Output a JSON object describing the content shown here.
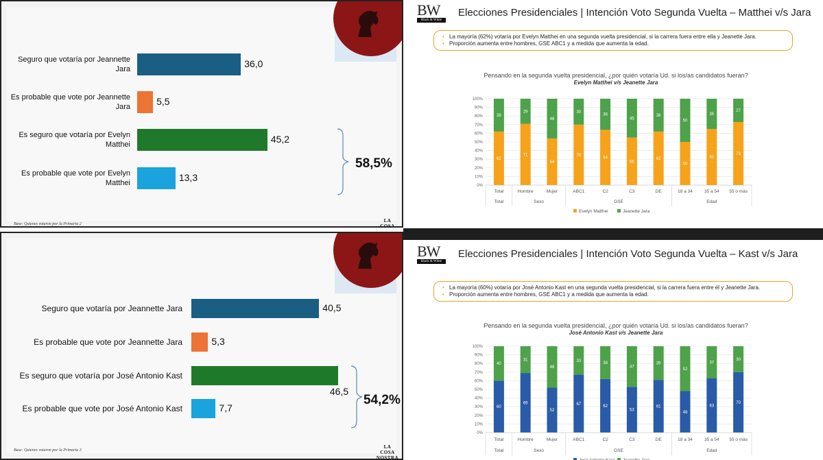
{
  "lcn_charts": [
    {
      "bars": [
        {
          "label": "Seguro que votaría por Jeannette Jara",
          "value": 36.0,
          "value_label": "36,0",
          "color": "#1b5e84"
        },
        {
          "label": "Es probable que vote por Jeannette Jara",
          "value": 5.5,
          "value_label": "5,5",
          "color": "#ec7434"
        },
        {
          "label": "Es seguro que votaría por Evelyn Matthei",
          "value": 45.2,
          "value_label": "45,2",
          "color": "#1e7a2a"
        },
        {
          "label": "Es probable que vote por Evelyn Matthei",
          "value": 13.3,
          "value_label": "13,3",
          "color": "#1aa3dc"
        }
      ],
      "bracket_total": "58,5%",
      "base": "Base: Quienes votaron por la Primaria 2",
      "logo": "LA COSA NOSTRA"
    },
    {
      "bars": [
        {
          "label": "Seguro que votaría por Jeannette Jara",
          "value": 40.5,
          "value_label": "40,5",
          "color": "#1b5e84"
        },
        {
          "label": "Es probable que vote por Jeannette Jara",
          "value": 5.3,
          "value_label": "5,3",
          "color": "#ec7434"
        },
        {
          "label": "Es seguro que votaría por José Antonio Kast",
          "value": 46.5,
          "value_label": "46,5",
          "color": "#1e7a2a"
        },
        {
          "label": "Es probable que vote por José Antonio Kast",
          "value": 7.7,
          "value_label": "7,7",
          "color": "#1aa3dc"
        }
      ],
      "bracket_total": "54,2%",
      "base": "Base: Quienes votaron por la Primaria 3",
      "logo": "LA COSA NOSTRA"
    }
  ],
  "bw_charts": [
    {
      "logo": "BW",
      "logo_sub": "Black & White",
      "title": "Elecciones Presidenciales | Intención Voto Segunda Vuelta – Matthei v/s Jara",
      "bullets": [
        "La mayoría (62%) votaría por Evelyn Matthei en una segunda vuelta presidencial, si la carrera fuera entre ella y Jeanette Jara.",
        "Proporción aumenta entre hombres, GSE ABC1 y a medida que aumenta la edad."
      ],
      "question": "Pensando en la segunda vuelta presidencial, ¿por quién votaría Ud. si los/as candidatos fueran?",
      "subtitle": "Evelyn Matthei v/s Jeanette Jara",
      "categories": [
        "Total",
        "Hombre",
        "Mujer",
        "ABC1",
        "C2",
        "C3",
        "DE",
        "18 a 34",
        "35 a 54",
        "55 o más"
      ],
      "groups": [
        {
          "label": "Total",
          "count": 1
        },
        {
          "label": "Sexo",
          "count": 2
        },
        {
          "label": "GSE",
          "count": 4
        },
        {
          "label": "Edad",
          "count": 3
        }
      ],
      "y_ticks": [
        "0%",
        "10%",
        "20%",
        "30%",
        "40%",
        "50%",
        "60%",
        "70%",
        "80%",
        "90%",
        "100%"
      ],
      "series": [
        {
          "name": "Evelyn Matthei",
          "color": "#f7a21b",
          "values": [
            62,
            71,
            54,
            70,
            64,
            55,
            62,
            50,
            65,
            73
          ]
        },
        {
          "name": "Jeanette Jara",
          "color": "#4ea24a",
          "values": [
            38,
            29,
            46,
            30,
            36,
            45,
            38,
            50,
            35,
            27
          ]
        }
      ]
    },
    {
      "logo": "BW",
      "logo_sub": "Black & White",
      "title": "Elecciones Presidenciales | Intención Voto Segunda Vuelta – Kast v/s Jara",
      "bullets": [
        "La mayoría (60%) votaría por José Antonio Kast en una segunda vuelta presidencial, si la carrera fuera entre él y Jeanette Jara.",
        "Proporción aumenta entre hombres, GSE ABC1 y a medida que aumenta la edad."
      ],
      "question": "Pensando en la segunda vuelta presidencial, ¿por quién votaría Ud. si los/as candidatos fueran?",
      "subtitle": "José Antonio Kast v/s Jeanette Jara",
      "categories": [
        "Total",
        "Hombre",
        "Mujer",
        "ABC1",
        "C2",
        "C3",
        "DE",
        "18 a 34",
        "35 a 54",
        "55 o más"
      ],
      "groups": [
        {
          "label": "Total",
          "count": 1
        },
        {
          "label": "Sexo",
          "count": 2
        },
        {
          "label": "GSE",
          "count": 4
        },
        {
          "label": "Edad",
          "count": 3
        }
      ],
      "y_ticks": [
        "0%",
        "10%",
        "20%",
        "30%",
        "40%",
        "50%",
        "60%",
        "70%",
        "80%",
        "90%",
        "100%"
      ],
      "series": [
        {
          "name": "José Antonio Kast",
          "color": "#2a5ba8",
          "values": [
            60,
            69,
            52,
            67,
            62,
            53,
            61,
            48,
            63,
            70
          ]
        },
        {
          "name": "Jeanette Jara",
          "color": "#4ea24a",
          "values": [
            40,
            31,
            48,
            33,
            38,
            47,
            39,
            52,
            37,
            30
          ]
        }
      ]
    }
  ],
  "chart_data": [
    {
      "type": "bar",
      "categories": [
        "Seguro que votaría por Jeannette Jara",
        "Es probable que vote por Jeannette Jara",
        "Es seguro que votaría por Evelyn Matthei",
        "Es probable que vote por Evelyn Matthei"
      ],
      "values": [
        36.0,
        5.5,
        45.2,
        13.3
      ],
      "annotations": [
        "58,5%"
      ]
    },
    {
      "type": "bar",
      "categories": [
        "Seguro que votaría por Jeannette Jara",
        "Es probable que vote por Jeannette Jara",
        "Es seguro que votaría por José Antonio Kast",
        "Es probable que vote por José Antonio Kast"
      ],
      "values": [
        40.5,
        5.3,
        46.5,
        7.7
      ],
      "annotations": [
        "54,2%"
      ]
    },
    {
      "type": "bar",
      "stacked": true,
      "title": "Pensando en la segunda vuelta presidencial, ¿por quién votaría Ud. si los/as candidatos fueran?",
      "categories": [
        "Total",
        "Hombre",
        "Mujer",
        "ABC1",
        "C2",
        "C3",
        "DE",
        "18 a 34",
        "35 a 54",
        "55 o más"
      ],
      "series": [
        {
          "name": "Evelyn Matthei",
          "values": [
            62,
            71,
            54,
            70,
            64,
            55,
            62,
            50,
            65,
            73
          ]
        },
        {
          "name": "Jeanette Jara",
          "values": [
            38,
            29,
            46,
            30,
            36,
            45,
            38,
            50,
            35,
            27
          ]
        }
      ],
      "ylim": [
        0,
        100
      ]
    },
    {
      "type": "bar",
      "stacked": true,
      "title": "Pensando en la segunda vuelta presidencial, ¿por quién votaría Ud. si los/as candidatos fueran?",
      "categories": [
        "Total",
        "Hombre",
        "Mujer",
        "ABC1",
        "C2",
        "C3",
        "DE",
        "18 a 34",
        "35 a 54",
        "55 o más"
      ],
      "series": [
        {
          "name": "José Antonio Kast",
          "values": [
            60,
            69,
            52,
            67,
            62,
            53,
            61,
            48,
            63,
            70
          ]
        },
        {
          "name": "Jeanette Jara",
          "values": [
            40,
            31,
            48,
            33,
            38,
            47,
            39,
            52,
            37,
            30
          ]
        }
      ],
      "ylim": [
        0,
        100
      ]
    }
  ]
}
